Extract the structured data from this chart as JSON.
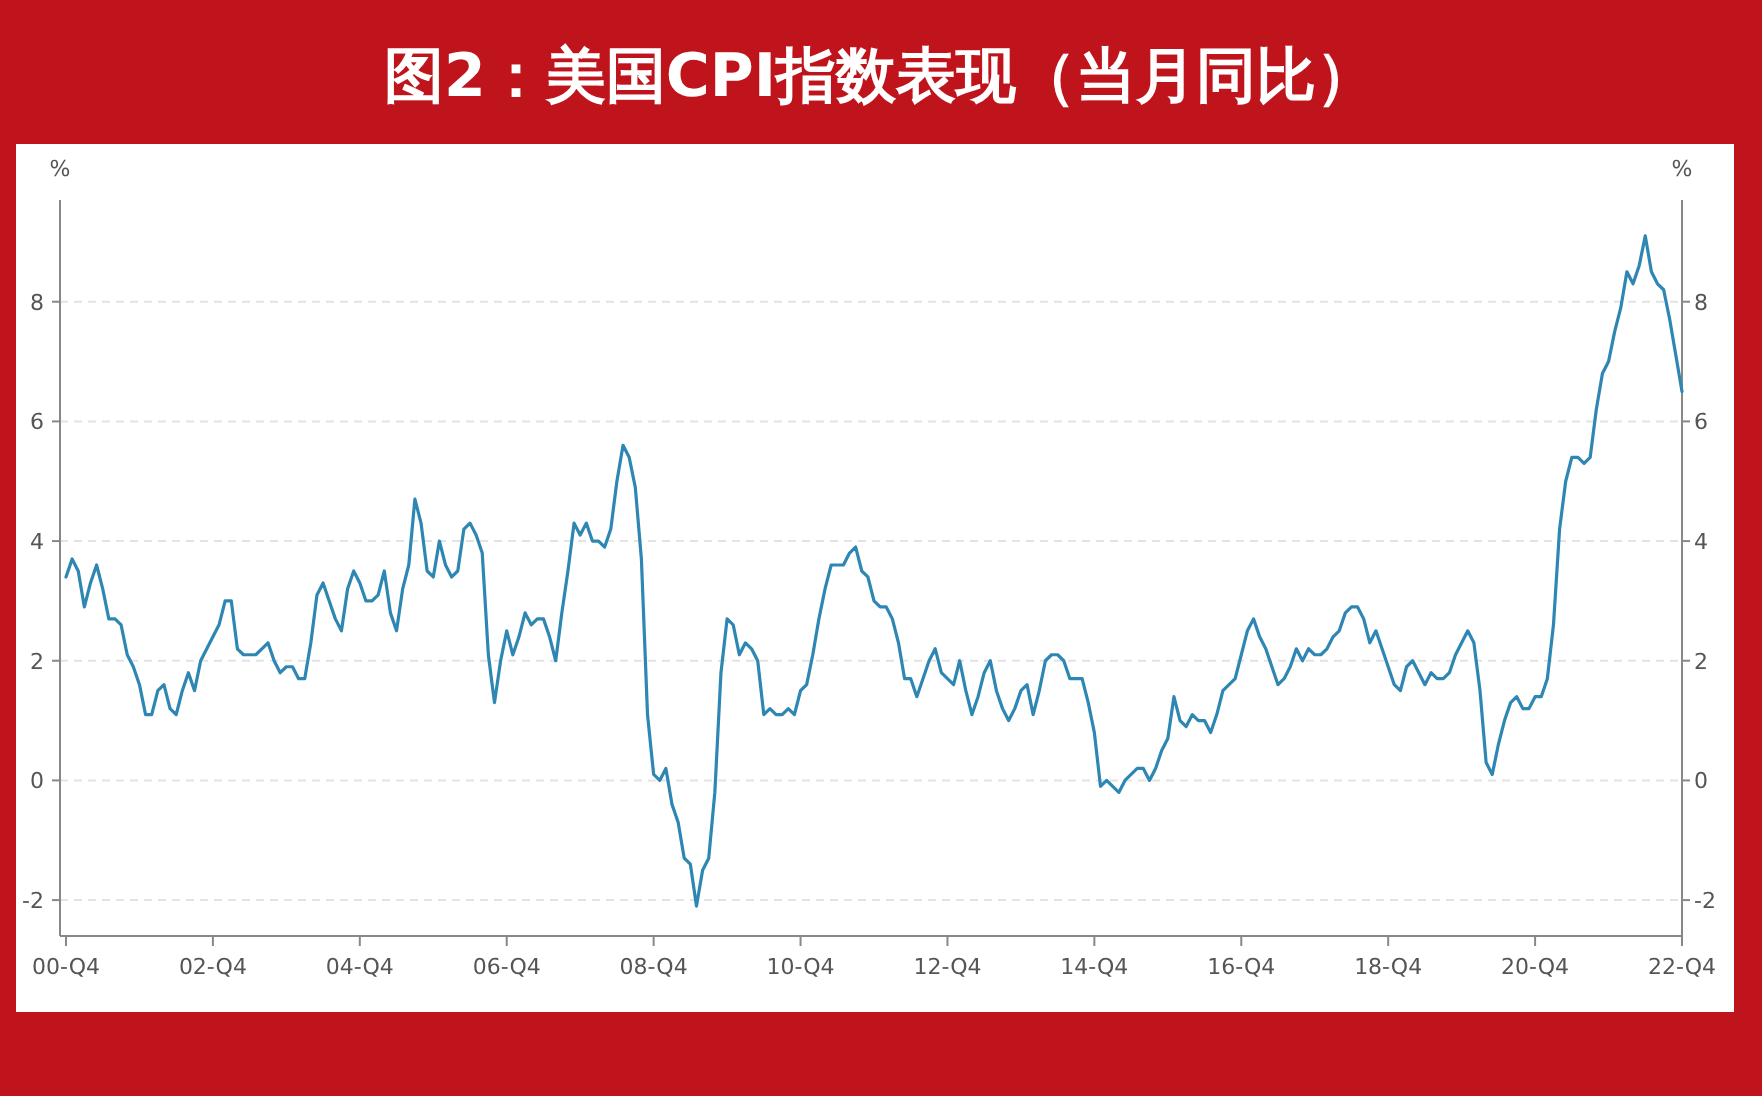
{
  "chart_data": {
    "type": "line",
    "title": "图2：美国CPI指数表现（当月同比）",
    "ylabel": "%",
    "y2label": "%",
    "categories": [
      "00-Q4",
      null,
      null,
      null,
      null,
      null,
      null,
      null,
      null,
      null,
      null,
      null,
      null,
      null,
      null,
      null,
      null,
      null,
      null,
      null,
      null,
      null,
      null,
      null,
      "02-Q4",
      null,
      null,
      null,
      null,
      null,
      null,
      null,
      null,
      null,
      null,
      null,
      null,
      null,
      null,
      null,
      null,
      null,
      null,
      null,
      null,
      null,
      null,
      null,
      "04-Q4",
      null,
      null,
      null,
      null,
      null,
      null,
      null,
      null,
      null,
      null,
      null,
      null,
      null,
      null,
      null,
      null,
      null,
      null,
      null,
      null,
      null,
      null,
      null,
      "06-Q4",
      null,
      null,
      null,
      null,
      null,
      null,
      null,
      null,
      null,
      null,
      null,
      null,
      null,
      null,
      null,
      null,
      null,
      null,
      null,
      null,
      null,
      null,
      null,
      "08-Q4",
      null,
      null,
      null,
      null,
      null,
      null,
      null,
      null,
      null,
      null,
      null,
      null,
      null,
      null,
      null,
      null,
      null,
      null,
      null,
      null,
      null,
      null,
      null,
      "10-Q4",
      null,
      null,
      null,
      null,
      null,
      null,
      null,
      null,
      null,
      null,
      null,
      null,
      null,
      null,
      null,
      null,
      null,
      null,
      null,
      null,
      null,
      null,
      null,
      "12-Q4",
      null,
      null,
      null,
      null,
      null,
      null,
      null,
      null,
      null,
      null,
      null,
      null,
      null,
      null,
      null,
      null,
      null,
      null,
      null,
      null,
      null,
      null,
      null,
      "14-Q4",
      null,
      null,
      null,
      null,
      null,
      null,
      null,
      null,
      null,
      null,
      null,
      null,
      null,
      null,
      null,
      null,
      null,
      null,
      null,
      null,
      null,
      null,
      null,
      "16-Q4",
      null,
      null,
      null,
      null,
      null,
      null,
      null,
      null,
      null,
      null,
      null,
      null,
      null,
      null,
      null,
      null,
      null,
      null,
      null,
      null,
      null,
      null,
      null,
      "18-Q4",
      null,
      null,
      null,
      null,
      null,
      null,
      null,
      null,
      null,
      null,
      null,
      null,
      null,
      null,
      null,
      null,
      null,
      null,
      null,
      null,
      null,
      null,
      null,
      "20-Q4",
      null,
      null,
      null,
      null,
      null,
      null,
      null,
      null,
      null,
      null,
      null,
      null,
      null,
      null,
      null,
      null,
      null,
      null,
      null,
      null,
      null,
      null,
      null,
      "22-Q4"
    ],
    "series": [
      {
        "color": "#2e86b3",
        "values": [
          3.4,
          3.7,
          3.5,
          2.9,
          3.3,
          3.6,
          3.2,
          2.7,
          2.7,
          2.6,
          2.1,
          1.9,
          1.6,
          1.1,
          1.1,
          1.5,
          1.6,
          1.2,
          1.1,
          1.5,
          1.8,
          1.5,
          2.0,
          2.2,
          2.4,
          2.6,
          3.0,
          3.0,
          2.2,
          2.1,
          2.1,
          2.1,
          2.2,
          2.3,
          2.0,
          1.8,
          1.9,
          1.9,
          1.7,
          1.7,
          2.3,
          3.1,
          3.3,
          3.0,
          2.7,
          2.5,
          3.2,
          3.5,
          3.3,
          3.0,
          3.0,
          3.1,
          3.5,
          2.8,
          2.5,
          3.2,
          3.6,
          4.7,
          4.3,
          3.5,
          3.4,
          4.0,
          3.6,
          3.4,
          3.5,
          4.2,
          4.3,
          4.1,
          3.8,
          2.1,
          1.3,
          2.0,
          2.5,
          2.1,
          2.4,
          2.8,
          2.6,
          2.7,
          2.7,
          2.4,
          2.0,
          2.8,
          3.5,
          4.3,
          4.1,
          4.3,
          4.0,
          4.0,
          3.9,
          4.2,
          5.0,
          5.6,
          5.4,
          4.9,
          3.7,
          1.1,
          0.1,
          0.0,
          0.2,
          -0.4,
          -0.7,
          -1.3,
          -1.4,
          -2.1,
          -1.5,
          -1.3,
          -0.2,
          1.8,
          2.7,
          2.6,
          2.1,
          2.3,
          2.2,
          2.0,
          1.1,
          1.2,
          1.1,
          1.1,
          1.2,
          1.1,
          1.5,
          1.6,
          2.1,
          2.7,
          3.2,
          3.6,
          3.6,
          3.6,
          3.8,
          3.9,
          3.5,
          3.4,
          3.0,
          2.9,
          2.9,
          2.7,
          2.3,
          1.7,
          1.7,
          1.4,
          1.7,
          2.0,
          2.2,
          1.8,
          1.7,
          1.6,
          2.0,
          1.5,
          1.1,
          1.4,
          1.8,
          2.0,
          1.5,
          1.2,
          1.0,
          1.2,
          1.5,
          1.6,
          1.1,
          1.5,
          2.0,
          2.1,
          2.1,
          2.0,
          1.7,
          1.7,
          1.7,
          1.3,
          0.8,
          -0.1,
          0.0,
          -0.1,
          -0.2,
          0.0,
          0.1,
          0.2,
          0.2,
          0.0,
          0.2,
          0.5,
          0.7,
          1.4,
          1.0,
          0.9,
          1.1,
          1.0,
          1.0,
          0.8,
          1.1,
          1.5,
          1.6,
          1.7,
          2.1,
          2.5,
          2.7,
          2.4,
          2.2,
          1.9,
          1.6,
          1.7,
          1.9,
          2.2,
          2.0,
          2.2,
          2.1,
          2.1,
          2.2,
          2.4,
          2.5,
          2.8,
          2.9,
          2.9,
          2.7,
          2.3,
          2.5,
          2.2,
          1.9,
          1.6,
          1.5,
          1.9,
          2.0,
          1.8,
          1.6,
          1.8,
          1.7,
          1.7,
          1.8,
          2.1,
          2.3,
          2.5,
          2.3,
          1.5,
          0.3,
          0.1,
          0.6,
          1.0,
          1.3,
          1.4,
          1.2,
          1.2,
          1.4,
          1.4,
          1.7,
          2.6,
          4.2,
          5.0,
          5.4,
          5.4,
          5.3,
          5.4,
          6.2,
          6.8,
          7.0,
          7.5,
          7.9,
          8.5,
          8.3,
          8.6,
          9.1,
          8.5,
          8.3,
          8.2,
          7.7,
          7.1,
          6.5
        ]
      }
    ],
    "ylim": [
      -2.6,
      9.7
    ],
    "yticks": [
      -2,
      0,
      2,
      4,
      6,
      8
    ],
    "y2lim": [
      -2.6,
      9.7
    ],
    "y2ticks": [
      -2,
      0,
      2,
      4,
      6,
      8
    ],
    "grid": "y",
    "marker": "none",
    "line_style": "solid"
  }
}
